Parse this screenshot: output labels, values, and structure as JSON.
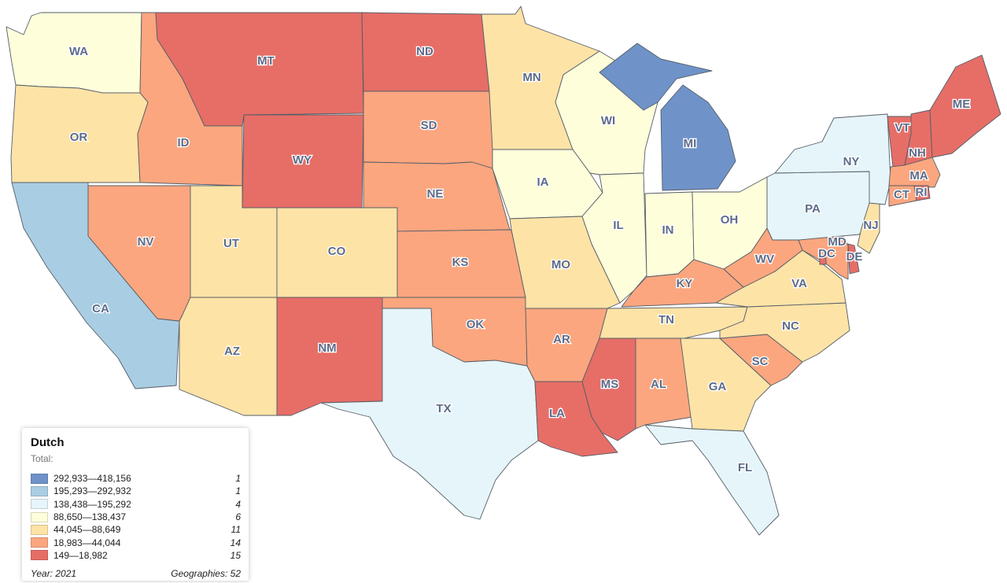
{
  "legend": {
    "title": "Dutch",
    "subtitle": "Total:",
    "year": "Year: 2021",
    "geographies": "Geographies: 52",
    "bins": [
      {
        "range": "292,933—418,156",
        "count": "1",
        "color": "#6f93c9"
      },
      {
        "range": "195,293—292,932",
        "count": "1",
        "color": "#a9cde3"
      },
      {
        "range": "138,438—195,292",
        "count": "4",
        "color": "#e6f5f9"
      },
      {
        "range": "88,650—138,437",
        "count": "6",
        "color": "#fefedb"
      },
      {
        "range": "44,045—88,649",
        "count": "11",
        "color": "#fee3a7"
      },
      {
        "range": "18,983—44,044",
        "count": "14",
        "color": "#fba67f"
      },
      {
        "range": "149—18,982",
        "count": "15",
        "color": "#e66e67"
      }
    ]
  },
  "states": [
    {
      "abbr": "WA",
      "bin": 3
    },
    {
      "abbr": "OR",
      "bin": 4
    },
    {
      "abbr": "CA",
      "bin": 1
    },
    {
      "abbr": "ID",
      "bin": 5
    },
    {
      "abbr": "NV",
      "bin": 5
    },
    {
      "abbr": "MT",
      "bin": 6
    },
    {
      "abbr": "WY",
      "bin": 6
    },
    {
      "abbr": "UT",
      "bin": 4
    },
    {
      "abbr": "AZ",
      "bin": 4
    },
    {
      "abbr": "CO",
      "bin": 4
    },
    {
      "abbr": "NM",
      "bin": 6
    },
    {
      "abbr": "ND",
      "bin": 6
    },
    {
      "abbr": "SD",
      "bin": 5
    },
    {
      "abbr": "NE",
      "bin": 5
    },
    {
      "abbr": "KS",
      "bin": 5
    },
    {
      "abbr": "OK",
      "bin": 5
    },
    {
      "abbr": "TX",
      "bin": 2
    },
    {
      "abbr": "MN",
      "bin": 4
    },
    {
      "abbr": "IA",
      "bin": 3
    },
    {
      "abbr": "MO",
      "bin": 4
    },
    {
      "abbr": "AR",
      "bin": 5
    },
    {
      "abbr": "LA",
      "bin": 6
    },
    {
      "abbr": "WI",
      "bin": 3
    },
    {
      "abbr": "IL",
      "bin": 3
    },
    {
      "abbr": "MI",
      "bin": 0
    },
    {
      "abbr": "IN",
      "bin": 3
    },
    {
      "abbr": "OH",
      "bin": 3
    },
    {
      "abbr": "KY",
      "bin": 5
    },
    {
      "abbr": "TN",
      "bin": 4
    },
    {
      "abbr": "MS",
      "bin": 6
    },
    {
      "abbr": "AL",
      "bin": 5
    },
    {
      "abbr": "GA",
      "bin": 4
    },
    {
      "abbr": "FL",
      "bin": 2
    },
    {
      "abbr": "SC",
      "bin": 5
    },
    {
      "abbr": "NC",
      "bin": 4
    },
    {
      "abbr": "VA",
      "bin": 4
    },
    {
      "abbr": "WV",
      "bin": 5
    },
    {
      "abbr": "PA",
      "bin": 2
    },
    {
      "abbr": "NY",
      "bin": 2
    },
    {
      "abbr": "NJ",
      "bin": 4
    },
    {
      "abbr": "DE",
      "bin": 6
    },
    {
      "abbr": "MD",
      "bin": 5
    },
    {
      "abbr": "DC",
      "bin": 6
    },
    {
      "abbr": "VT",
      "bin": 6
    },
    {
      "abbr": "NH",
      "bin": 6
    },
    {
      "abbr": "ME",
      "bin": 6
    },
    {
      "abbr": "MA",
      "bin": 5
    },
    {
      "abbr": "CT",
      "bin": 5
    },
    {
      "abbr": "RI",
      "bin": 6
    }
  ]
}
